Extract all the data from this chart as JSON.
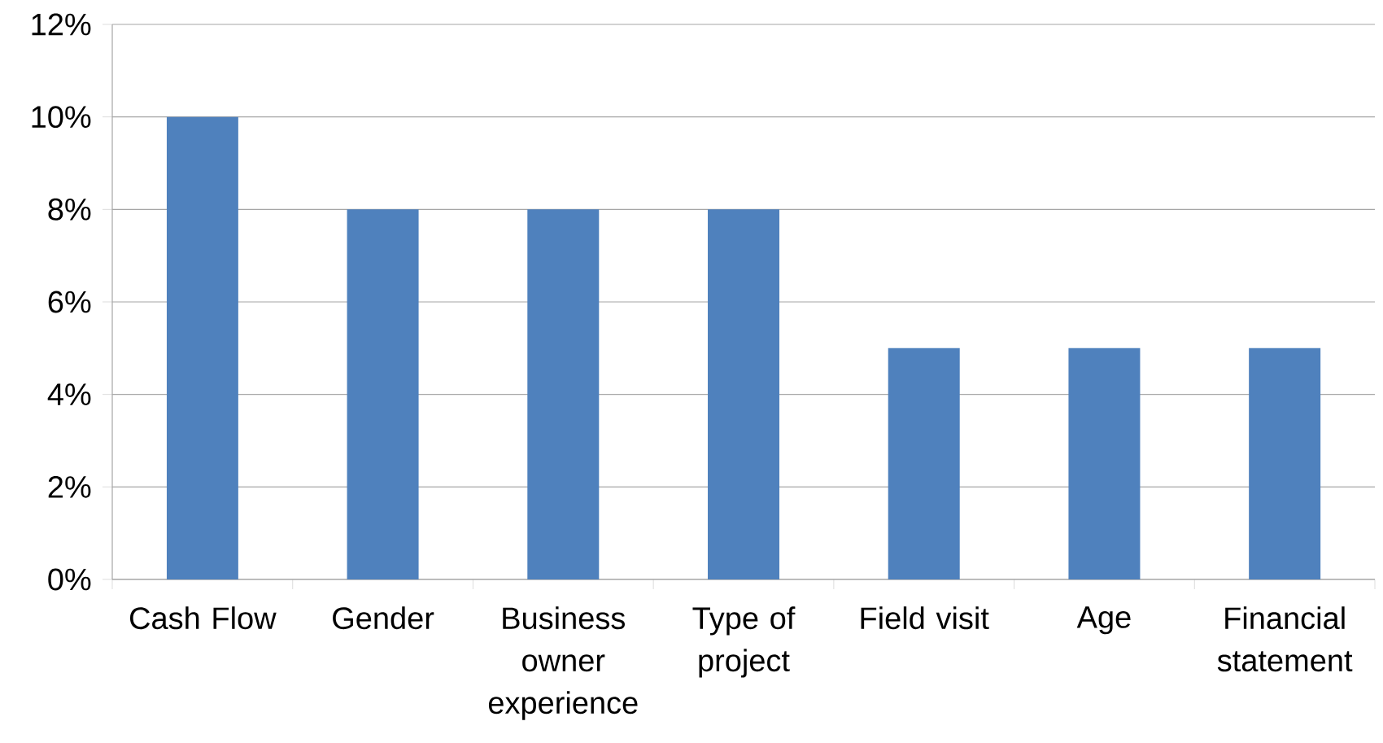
{
  "chart_data": {
    "type": "bar",
    "categories": [
      "Cash Flow",
      "Gender",
      "Business owner experience",
      "Type of project",
      "Field visit",
      "Age",
      "Financial statement"
    ],
    "values": [
      10,
      8,
      8,
      8,
      5,
      5,
      5
    ],
    "color": "#4f81bd",
    "ylim": [
      0,
      12
    ],
    "yticks": [
      {
        "value": 0,
        "label": "0%"
      },
      {
        "value": 2,
        "label": "2%"
      },
      {
        "value": 4,
        "label": "4%"
      },
      {
        "value": 6,
        "label": "6%"
      },
      {
        "value": 8,
        "label": "8%"
      },
      {
        "value": 10,
        "label": "10%"
      },
      {
        "value": 12,
        "label": "12%"
      }
    ],
    "grid": "y"
  }
}
